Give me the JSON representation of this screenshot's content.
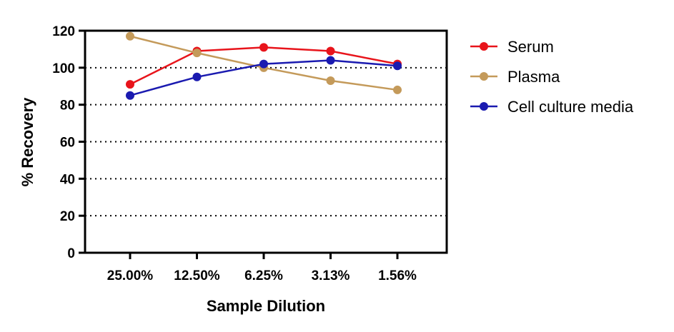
{
  "chart_data": {
    "type": "line",
    "xlabel": "Sample Dilution",
    "ylabel": "% Recovery",
    "categories": [
      "25.00%",
      "12.50%",
      "6.25%",
      "3.13%",
      "1.56%"
    ],
    "ylim": [
      0,
      120
    ],
    "yticks": [
      "0",
      "20",
      "40",
      "60",
      "80",
      "100",
      "120"
    ],
    "grid": "horizontal dotted",
    "legend_position": "right",
    "series": [
      {
        "name": "Serum",
        "color": "#e8141b",
        "values": [
          91,
          109,
          111,
          109,
          102
        ]
      },
      {
        "name": "Plasma",
        "color": "#c49a5a",
        "values": [
          117,
          108,
          100,
          93,
          88
        ]
      },
      {
        "name": "Cell culture media",
        "color": "#1a1ab0",
        "values": [
          85,
          95,
          102,
          104,
          101
        ]
      }
    ]
  }
}
